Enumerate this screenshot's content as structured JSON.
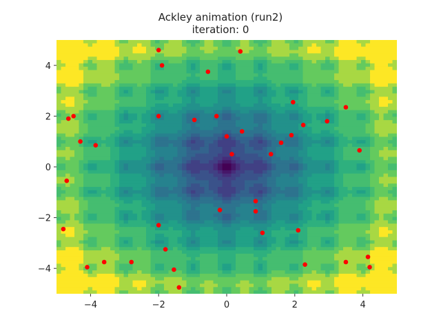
{
  "chart_data": {
    "type": "scatter",
    "title": "Ackley animation (run2)",
    "subtitle": "iteration: 0",
    "xlim": [
      -5,
      5
    ],
    "ylim": [
      -5,
      5
    ],
    "xticks": [
      -4,
      -2,
      0,
      2,
      4
    ],
    "yticks": [
      -4,
      -2,
      0,
      2,
      4
    ],
    "xtick_labels": [
      "−4",
      "−2",
      "0",
      "2",
      "4"
    ],
    "ytick_labels": [
      "−4",
      "−2",
      "0",
      "2",
      "4"
    ],
    "background": "Ackley function filled contour",
    "grid": false,
    "colors": {
      "points": "#ff0000",
      "contour_low": "#440154",
      "contour_mid": "#21918c",
      "contour_high": "#fde725"
    },
    "series": [
      {
        "x": [
          -2.0,
          -1.9,
          -0.55,
          0.4,
          -4.65,
          -4.5,
          -2.0,
          -0.95,
          -0.3,
          0.45,
          1.95,
          3.5,
          2.95,
          2.25,
          1.9,
          1.6,
          1.3,
          -4.3,
          -3.85,
          0.0,
          0.15,
          3.9,
          -4.7,
          -0.2,
          0.85,
          0.85,
          -2.0,
          2.1,
          1.05,
          -1.8,
          -4.8,
          -4.1,
          -3.6,
          -2.8,
          -1.55,
          -1.4,
          2.3,
          3.5,
          4.15,
          4.2
        ],
        "y": [
          4.6,
          4.0,
          3.75,
          4.55,
          1.9,
          2.0,
          2.0,
          1.85,
          2.0,
          1.4,
          2.55,
          2.35,
          1.8,
          1.65,
          1.25,
          0.95,
          0.5,
          1.0,
          0.85,
          1.2,
          0.5,
          0.65,
          -0.55,
          -1.7,
          -1.35,
          -1.75,
          -2.3,
          -2.5,
          -2.6,
          -3.25,
          -2.45,
          -3.95,
          -3.75,
          -3.75,
          -4.05,
          -4.75,
          -3.85,
          -3.75,
          -3.55,
          -3.95
        ]
      }
    ]
  }
}
